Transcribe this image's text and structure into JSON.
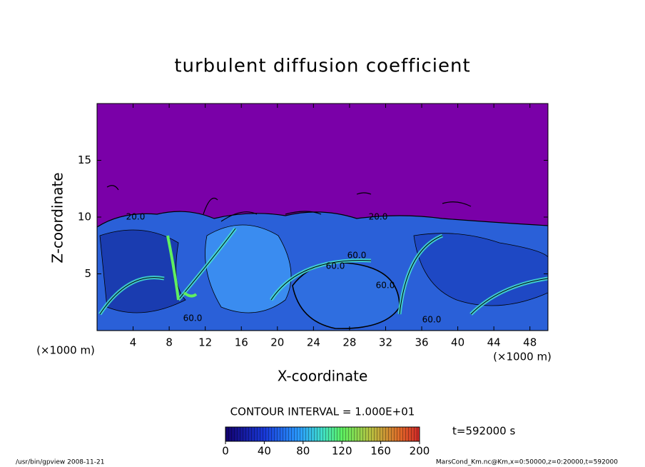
{
  "chart_data": {
    "type": "contour",
    "title": "turbulent diffusion coefficient",
    "xlabel": "X-coordinate",
    "ylabel": "Z-coordinate",
    "x_unit_labels": [
      "(×1000 m)",
      "(×1000 m)"
    ],
    "xlim": [
      0,
      50
    ],
    "xticks": [
      4,
      8,
      12,
      16,
      20,
      24,
      28,
      32,
      36,
      40,
      44,
      48
    ],
    "ylim": [
      0,
      20
    ],
    "yticks": [
      5,
      10,
      15
    ],
    "contour_labels": [
      "20.0",
      "20.0",
      "60.0",
      "60.0",
      "60.0",
      "60.0",
      "60.0"
    ],
    "contour_interval": "CONTOUR INTERVAL = 1.000E+01",
    "clim": [
      0,
      200
    ],
    "cticks": [
      0,
      40,
      80,
      120,
      160,
      200
    ],
    "time_label": "t=592000 s",
    "footer_left": "/usr/bin/gpview   2008-11-21",
    "footer_right": "MarsCond_Km.nc@Km,x=0:50000,z=0:20000,t=592000"
  }
}
